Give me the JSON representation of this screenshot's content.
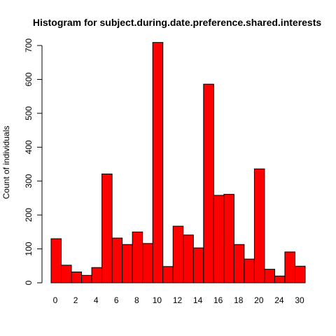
{
  "chart_data": {
    "type": "bar",
    "title": "Histogram for subject.during.date.preference.shared.interests",
    "xlabel": "",
    "ylabel": "Count of individuals",
    "x_tick_labels": [
      "0",
      "2",
      "4",
      "6",
      "8",
      "10",
      "12",
      "14",
      "16",
      "18",
      "20",
      "24",
      "30"
    ],
    "y_ticks": [
      0,
      100,
      200,
      300,
      400,
      500,
      600,
      700
    ],
    "ylim": [
      0,
      700
    ],
    "grid": false,
    "bar_color": "#FF0000",
    "bar_border_color": "#000000",
    "values": [
      130,
      52,
      32,
      22,
      45,
      321,
      132,
      113,
      150,
      116,
      709,
      48,
      167,
      141,
      103,
      586,
      258,
      261,
      113,
      70,
      336,
      40,
      20,
      91,
      49
    ]
  }
}
